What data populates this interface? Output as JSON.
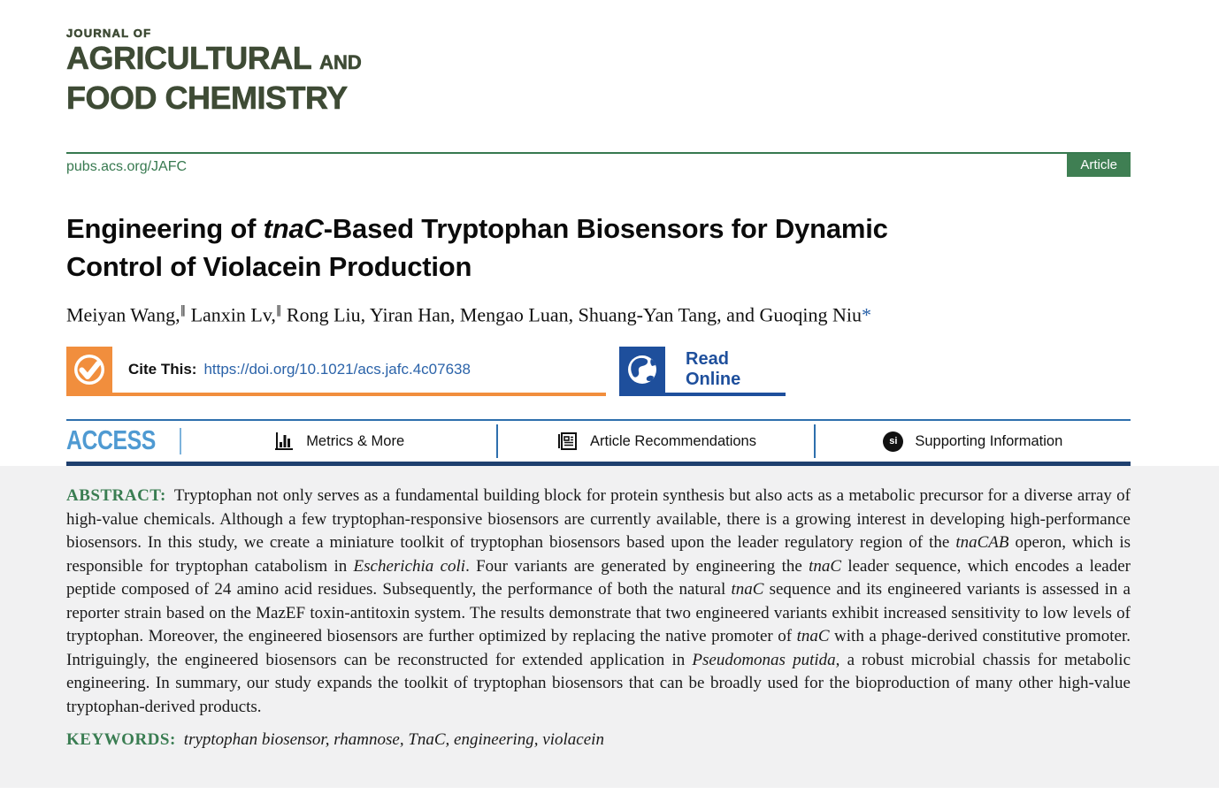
{
  "journal": {
    "name_line1": "JOURNAL OF",
    "name_line2_main": "AGRICULTURAL",
    "name_line2_suffix": "AND",
    "name_line3": "FOOD CHEMISTRY",
    "site_url": "pubs.acs.org/JAFC",
    "article_badge": "Article"
  },
  "colors": {
    "logo_green": "#3e4b35",
    "acs_green": "#37794f",
    "badge_green": "#3f7f53",
    "cite_orange": "#f18e3d",
    "link_blue": "#2b63a9",
    "read_online_blue": "#1e4f9c",
    "access_light_blue": "#4f9ad2",
    "nav_rule_blue": "#2e6fad",
    "nav_bottom_navy": "#1e3f6e",
    "abstract_bg_gray": "#f1f1f2",
    "abstract_label_green": "#3a7d52"
  },
  "article": {
    "title_segments": [
      {
        "t": "Engineering of "
      },
      {
        "t": "tnaC",
        "i": true
      },
      {
        "t": "-Based Tryptophan Biosensors for Dynamic"
      },
      {
        "br": true
      },
      {
        "t": "Control of Violacein Production"
      }
    ],
    "authors_segments": [
      {
        "t": "Meiyan Wang,"
      },
      {
        "t": "∥",
        "sup": true
      },
      {
        "t": " Lanxin Lv,"
      },
      {
        "t": "∥",
        "sup": true
      },
      {
        "t": " Rong Liu, Yiran Han, Mengao Luan, Shuang-Yan Tang, and Guoqing Niu"
      },
      {
        "t": "*",
        "c": "#2b63a9"
      }
    ]
  },
  "cite": {
    "label": "Cite This:",
    "doi_link": "https://doi.org/10.1021/acs.jafc.4c07638",
    "read_online_label": "Read Online"
  },
  "nav": {
    "access_label": "ACCESS",
    "items": [
      {
        "label": "Metrics & More",
        "icon": "bar-chart-icon"
      },
      {
        "label": "Article Recommendations",
        "icon": "article-icon"
      },
      {
        "label": "Supporting Information",
        "icon": "si-circle-icon"
      }
    ]
  },
  "abstract": {
    "label": "ABSTRACT:",
    "segments": [
      {
        "t": "Tryptophan not only serves as a fundamental building block for protein synthesis but also acts as a metabolic precursor for a diverse array of high-value chemicals. Although a few tryptophan-responsive biosensors are currently available, there is a growing interest in developing high-performance biosensors. In this study, we create a miniature toolkit of tryptophan biosensors based upon the leader regulatory region of the "
      },
      {
        "t": "tnaCAB",
        "i": true
      },
      {
        "t": " operon, which is responsible for tryptophan catabolism in "
      },
      {
        "t": "Escherichia coli",
        "i": true
      },
      {
        "t": ". Four variants are generated by engineering the "
      },
      {
        "t": "tnaC",
        "i": true
      },
      {
        "t": " leader sequence, which encodes a leader peptide composed of 24 amino acid residues. Subsequently, the performance of both the natural "
      },
      {
        "t": "tnaC",
        "i": true
      },
      {
        "t": " sequence and its engineered variants is assessed in a reporter strain based on the MazEF toxin-antitoxin system. The results demonstrate that two engineered variants exhibit increased sensitivity to low levels of tryptophan. Moreover, the engineered biosensors are further optimized by replacing the native promoter of "
      },
      {
        "t": "tnaC",
        "i": true
      },
      {
        "t": " with a phage-derived constitutive promoter. Intriguingly, the engineered biosensors can be reconstructed for extended application in "
      },
      {
        "t": "Pseudomonas putida",
        "i": true
      },
      {
        "t": ", a robust microbial chassis for metabolic engineering. In summary, our study expands the toolkit of tryptophan biosensors that can be broadly used for the bioproduction of many other high-value tryptophan-derived products."
      }
    ]
  },
  "keywords": {
    "label": "KEYWORDS:",
    "text": "tryptophan biosensor, rhamnose, TnaC, engineering, violacein"
  }
}
